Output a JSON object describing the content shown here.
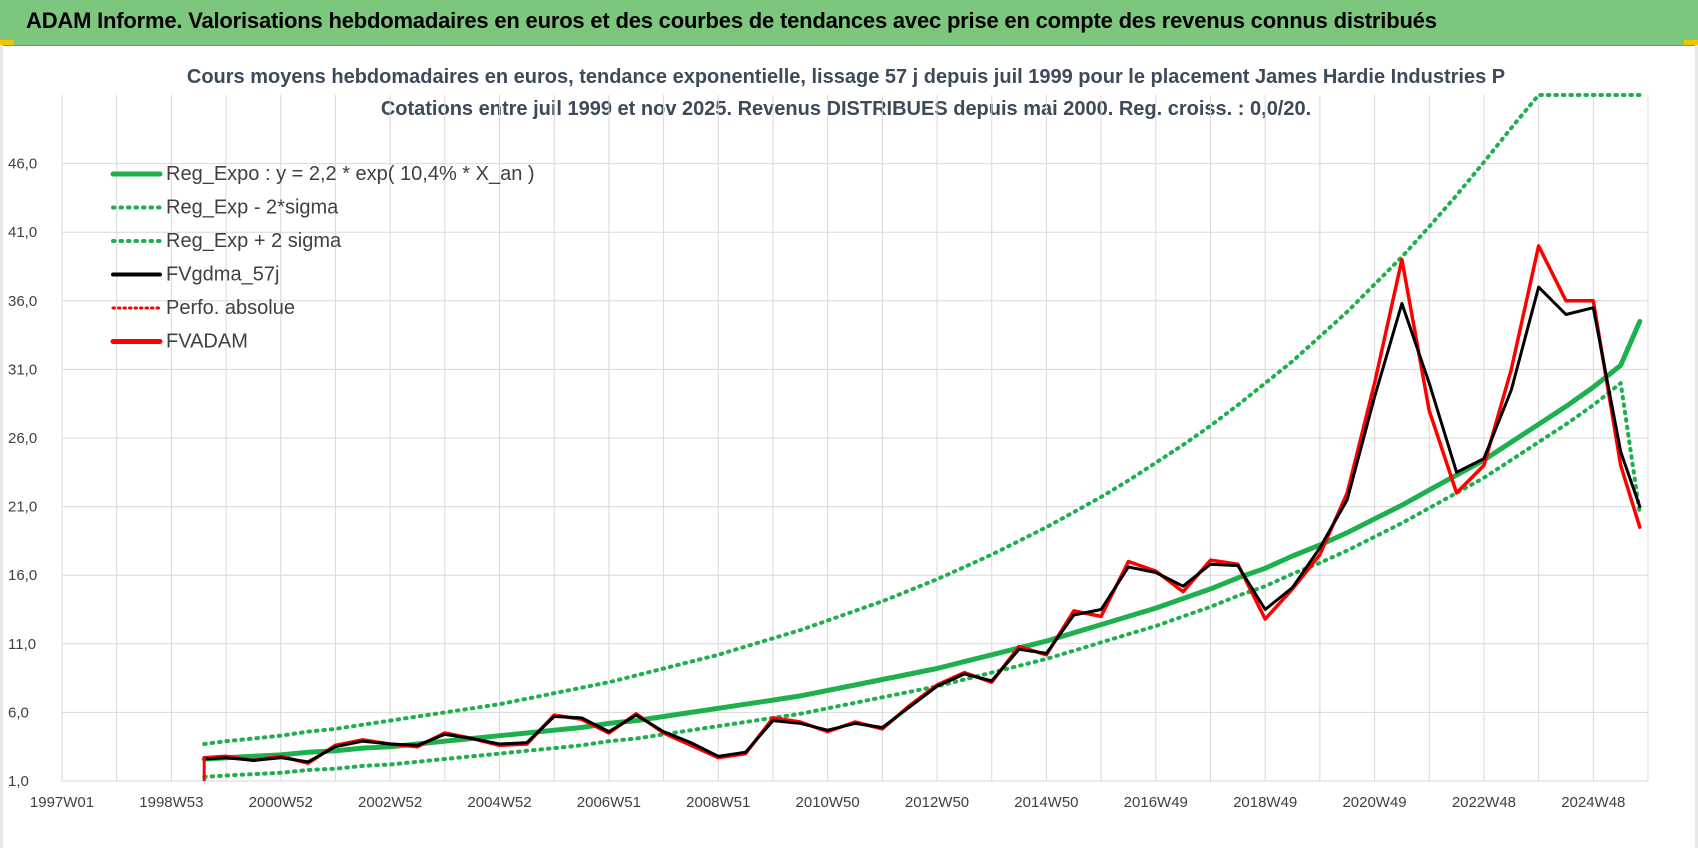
{
  "header": {
    "title": "ADAM Informe. Valorisations hebdomadaires en euros et des courbes de tendances avec prise en compte des revenus connus distribués"
  },
  "colors": {
    "header_bg": "#7dc67d",
    "reg_expo": "#1db04d",
    "fvgdma": "#000000",
    "fvadam": "#ff0000",
    "perfo": "#ff0000",
    "grid": "#d9d9d9"
  },
  "chart_data": {
    "type": "line",
    "title": "Cours moyens hebdomadaires en euros, tendance exponentielle, lissage 57 j depuis juil 1999 pour le placement James Hardie Industries P",
    "subtitle": "Cotations entre juil 1999 et nov 2025. Revenus DISTRIBUES depuis mai 2000. Reg. croiss. : 0,0/20.",
    "xlabel": "",
    "ylabel": "",
    "xlim": [
      1997.0,
      2026.0
    ],
    "ylim": [
      1.0,
      51.0
    ],
    "grid": true,
    "legend_position": "top-left",
    "y_ticks": [
      "1,0",
      "6,0",
      "11,0",
      "16,0",
      "21,0",
      "26,0",
      "31,0",
      "36,0",
      "41,0",
      "46,0"
    ],
    "x_ticks": [
      "1997W01",
      "1998W53",
      "2000W52",
      "2002W52",
      "2004W52",
      "2006W51",
      "2008W51",
      "2010W50",
      "2012W50",
      "2014W50",
      "2016W49",
      "2018W49",
      "2020W49",
      "2022W48",
      "2024W48"
    ],
    "legend": [
      "Reg_Expo : y = 2,2 * exp( 10,4% *  X_an )",
      "Reg_Exp - 2*sigma",
      "Reg_Exp + 2 sigma",
      "FVgdma_57j",
      "Perfo. absolue",
      "FVADAM"
    ],
    "x": [
      1999.6,
      2000.0,
      2000.5,
      2001.0,
      2001.5,
      2002.0,
      2002.5,
      2003.0,
      2003.5,
      2004.0,
      2004.5,
      2005.0,
      2005.5,
      2006.0,
      2006.5,
      2007.0,
      2007.5,
      2008.0,
      2008.5,
      2009.0,
      2009.5,
      2010.0,
      2010.5,
      2011.0,
      2011.5,
      2012.0,
      2012.5,
      2013.0,
      2013.5,
      2014.0,
      2014.5,
      2015.0,
      2015.5,
      2016.0,
      2016.5,
      2017.0,
      2017.5,
      2018.0,
      2018.5,
      2019.0,
      2019.5,
      2020.0,
      2020.5,
      2021.0,
      2021.5,
      2022.0,
      2022.5,
      2023.0,
      2023.5,
      2024.0,
      2024.5,
      2025.0,
      2025.5,
      2025.85
    ],
    "series": [
      {
        "name": "Reg_Expo : y = 2,2 * exp( 10,4% *  X_an )",
        "values": [
          2.6,
          2.7,
          2.8,
          2.9,
          3.1,
          3.2,
          3.4,
          3.5,
          3.7,
          3.9,
          4.1,
          4.3,
          4.5,
          4.7,
          4.9,
          5.2,
          5.4,
          5.7,
          6.0,
          6.3,
          6.6,
          6.9,
          7.2,
          7.6,
          8.0,
          8.4,
          8.8,
          9.2,
          9.7,
          10.2,
          10.7,
          11.2,
          11.8,
          12.4,
          13.0,
          13.6,
          14.3,
          15.0,
          15.8,
          16.5,
          17.4,
          18.2,
          19.1,
          20.1,
          21.1,
          22.2,
          23.3,
          24.4,
          25.7,
          27.0,
          28.3,
          29.7,
          31.3,
          34.5
        ]
      },
      {
        "name": "Reg_Exp - 2*sigma",
        "values": [
          1.3,
          1.4,
          1.5,
          1.6,
          1.8,
          1.9,
          2.1,
          2.2,
          2.4,
          2.6,
          2.8,
          3.0,
          3.2,
          3.4,
          3.6,
          3.9,
          4.1,
          4.4,
          4.7,
          5.0,
          5.3,
          5.6,
          5.9,
          6.3,
          6.7,
          7.1,
          7.5,
          7.9,
          8.4,
          8.9,
          9.4,
          9.9,
          10.5,
          11.1,
          11.7,
          12.3,
          13.0,
          13.7,
          14.5,
          15.2,
          16.1,
          16.9,
          17.8,
          18.8,
          19.8,
          20.9,
          22.0,
          23.1,
          24.4,
          25.7,
          27.0,
          28.4,
          30.0,
          20.5
        ]
      },
      {
        "name": "Reg_Exp + 2 sigma",
        "values": [
          3.7,
          3.9,
          4.1,
          4.3,
          4.6,
          4.8,
          5.1,
          5.4,
          5.7,
          6.0,
          6.3,
          6.6,
          7.0,
          7.4,
          7.8,
          8.2,
          8.7,
          9.2,
          9.7,
          10.2,
          10.8,
          11.4,
          12.0,
          12.7,
          13.4,
          14.1,
          14.9,
          15.7,
          16.6,
          17.5,
          18.5,
          19.5,
          20.6,
          21.7,
          22.9,
          24.2,
          25.5,
          26.9,
          28.4,
          30.0,
          31.6,
          33.4,
          35.2,
          37.2,
          39.2,
          41.4,
          43.7,
          46.1,
          48.6,
          51.0,
          51.0,
          51.0,
          51.0,
          51.0
        ]
      },
      {
        "name": "FVgdma_57j",
        "values": [
          2.6,
          2.7,
          2.5,
          2.7,
          2.4,
          3.5,
          3.9,
          3.7,
          3.6,
          4.4,
          4.1,
          3.7,
          3.8,
          5.7,
          5.6,
          4.6,
          5.8,
          4.6,
          3.8,
          2.8,
          3.1,
          5.4,
          5.2,
          4.7,
          5.2,
          4.9,
          6.4,
          7.9,
          8.8,
          8.3,
          10.6,
          10.3,
          13.1,
          13.5,
          16.6,
          16.2,
          15.2,
          16.8,
          16.7,
          13.5,
          15.1,
          18.0,
          21.5,
          29.0,
          35.8,
          30.0,
          23.5,
          24.5,
          29.5,
          37.0,
          35.0,
          35.5,
          25.0,
          21.0
        ]
      },
      {
        "name": "Perfo. absolue",
        "values": [
          2.7,
          2.8,
          2.5,
          2.8,
          2.3,
          3.6,
          4.0,
          3.7,
          3.5,
          4.5,
          4.1,
          3.6,
          3.7,
          5.8,
          5.5,
          4.5,
          5.9,
          4.5,
          3.6,
          2.7,
          3.0,
          5.6,
          5.3,
          4.6,
          5.3,
          4.8,
          6.5,
          8.0,
          8.9,
          8.2,
          10.8,
          10.2,
          13.4,
          13.0,
          17.0,
          16.3,
          14.8,
          17.1,
          16.8,
          12.8,
          15.0,
          17.5,
          22.0,
          30.0,
          39.0,
          28.0,
          22.0,
          24.0,
          31.0,
          40.0,
          36.0,
          36.0,
          24.0,
          19.5
        ]
      },
      {
        "name": "FVADAM",
        "values": [
          2.7,
          2.8,
          2.5,
          2.8,
          2.3,
          3.6,
          4.0,
          3.7,
          3.5,
          4.5,
          4.1,
          3.6,
          3.7,
          5.8,
          5.5,
          4.5,
          5.9,
          4.5,
          3.6,
          2.7,
          3.0,
          5.6,
          5.3,
          4.6,
          5.3,
          4.8,
          6.5,
          8.0,
          8.9,
          8.2,
          10.8,
          10.2,
          13.4,
          13.0,
          17.0,
          16.3,
          14.8,
          17.1,
          16.8,
          12.8,
          15.0,
          17.5,
          22.0,
          30.0,
          39.0,
          28.0,
          22.0,
          24.0,
          31.0,
          40.0,
          36.0,
          36.0,
          24.0,
          19.5
        ]
      }
    ]
  }
}
